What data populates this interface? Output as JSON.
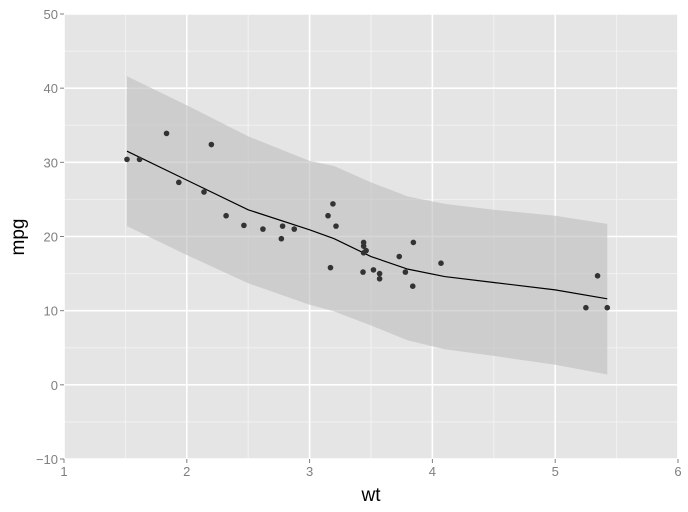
{
  "chart_data": {
    "type": "scatter",
    "title": "",
    "xlabel": "wt",
    "ylabel": "mpg",
    "xlim": [
      1,
      6
    ],
    "ylim": [
      -10,
      50
    ],
    "x_ticks": [
      1,
      2,
      3,
      4,
      5,
      6
    ],
    "y_ticks": [
      -10,
      0,
      10,
      20,
      30,
      40,
      50
    ],
    "grid": true,
    "legend": null,
    "colors": {
      "panel": "#e5e5e5",
      "grid_major": "#ffffff",
      "grid_minor": "#f2f2f2",
      "ribbon": "#bdbdbd",
      "point": "#333333",
      "line": "#000000"
    },
    "points": [
      [
        2.62,
        21.0
      ],
      [
        2.875,
        21.0
      ],
      [
        2.32,
        22.8
      ],
      [
        3.215,
        21.4
      ],
      [
        3.44,
        18.7
      ],
      [
        3.46,
        18.1
      ],
      [
        3.57,
        14.3
      ],
      [
        3.19,
        24.4
      ],
      [
        3.15,
        22.8
      ],
      [
        3.44,
        19.2
      ],
      [
        3.44,
        17.8
      ],
      [
        4.07,
        16.4
      ],
      [
        3.73,
        17.3
      ],
      [
        3.78,
        15.2
      ],
      [
        5.25,
        10.4
      ],
      [
        5.424,
        10.4
      ],
      [
        5.345,
        14.7
      ],
      [
        2.2,
        32.4
      ],
      [
        1.615,
        30.4
      ],
      [
        1.835,
        33.9
      ],
      [
        2.465,
        21.5
      ],
      [
        3.52,
        15.5
      ],
      [
        3.435,
        15.2
      ],
      [
        3.84,
        13.3
      ],
      [
        3.845,
        19.2
      ],
      [
        1.935,
        27.3
      ],
      [
        2.14,
        26.0
      ],
      [
        1.513,
        30.4
      ],
      [
        3.17,
        15.8
      ],
      [
        2.77,
        19.7
      ],
      [
        3.57,
        15.0
      ],
      [
        2.78,
        21.4
      ]
    ],
    "smooth": {
      "x": [
        1.513,
        2.0,
        2.5,
        3.0,
        3.2,
        3.5,
        3.8,
        4.1,
        4.5,
        5.0,
        5.424
      ],
      "y": [
        31.5,
        27.6,
        23.6,
        20.9,
        19.7,
        17.3,
        15.6,
        14.6,
        13.8,
        12.8,
        11.6
      ],
      "ymin": [
        21.4,
        17.5,
        13.7,
        10.8,
        9.9,
        8.0,
        6.0,
        4.8,
        3.9,
        2.7,
        1.4
      ],
      "ymax": [
        41.6,
        37.7,
        33.5,
        30.2,
        29.5,
        27.3,
        25.4,
        24.4,
        23.6,
        22.8,
        21.7
      ]
    }
  }
}
